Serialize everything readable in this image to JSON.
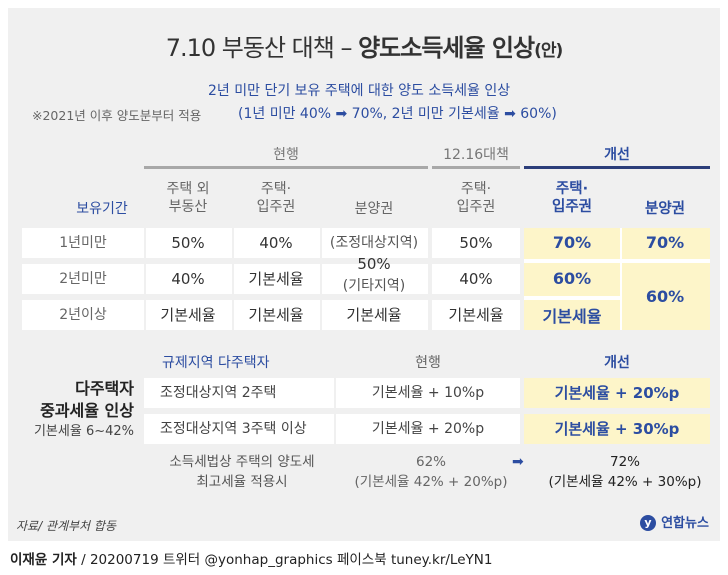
{
  "title": {
    "main": "7.10 부동산 대책 – ",
    "bold": "양도소득세율 인상",
    "suffix": "(안)"
  },
  "subtitle1": "2년 미만 단기 보유 주택에 대한 양도 소득세율 인상",
  "note": "※2021년 이후 양도분부터 적용",
  "subtitle2": "(1년 미만 40% ➡ 70%, 2년 미만 기본세율 ➡ 60%)",
  "table1": {
    "group_current": "현행",
    "group_1216": "12.16대책",
    "group_improve": "개선",
    "headers": {
      "period": "보유기간",
      "other": "주택 외\n부동산",
      "house": "주택·\n입주권",
      "bunyang": "분양권",
      "house1216": "주택·\n입주권",
      "new_house": "주택·\n입주권",
      "new_bunyang": "분양권"
    },
    "rows": [
      {
        "period": "1년미만",
        "other": "50%",
        "house": "40%",
        "bunyang": "(조정대상지역)",
        "house1216": "50%",
        "new_house": "70%",
        "new_bunyang": "70%"
      },
      {
        "period": "2년미만",
        "other": "40%",
        "house": "기본세율",
        "house1216": "40%",
        "new_house": "60%"
      },
      {
        "period": "2년이상",
        "other": "기본세율",
        "house": "기본세율",
        "bunyang": "기본세율",
        "house1216": "기본세율",
        "new_house": "기본세율"
      }
    ],
    "bunyang_merged_value": "50%",
    "bunyang_merged_note": "(기타지역)",
    "new_bunyang_merged": "60%"
  },
  "table2": {
    "left_title1": "다주택자",
    "left_title2": "중과세율 인상",
    "left_sub": "기본세율 6~42%",
    "head_region": "규제지역 다주택자",
    "head_current": "현행",
    "head_improve": "개선",
    "rows": [
      {
        "label": "조정대상지역 2주택",
        "current": "기본세율 + 10%p",
        "improve": "기본세율 + 20%p"
      },
      {
        "label": "조정대상지역 3주택 이상",
        "current": "기본세율 + 20%p",
        "improve": "기본세율 + 30%p"
      }
    ],
    "max_label1": "소득세법상 주택의 양도세",
    "max_label2": "최고세율 적용시",
    "max_current1": "62%",
    "max_current2": "(기본세율 42% + 20%p)",
    "arrow": "➡",
    "max_new1": "72%",
    "max_new2": "(기본세율 42% + 30%p)"
  },
  "source": "자료/ 관계부처 합동",
  "logo": "연합뉴스",
  "credit": {
    "author": "이재윤 기자",
    "rest": " / 20200719   트위터 @yonhap_graphics  페이스북 tuney.kr/LeYN1"
  }
}
